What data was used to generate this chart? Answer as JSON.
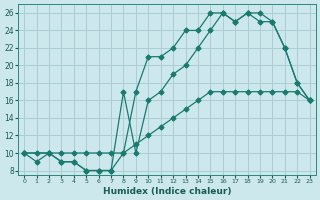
{
  "xlabel": "Humidex (Indice chaleur)",
  "bg_color": "#cce8ed",
  "grid_color": "#aacdd4",
  "line_color": "#1a7a6e",
  "xlim": [
    -0.5,
    23.5
  ],
  "ylim": [
    7.5,
    27
  ],
  "xticks": [
    0,
    1,
    2,
    3,
    4,
    5,
    6,
    7,
    8,
    9,
    10,
    11,
    12,
    13,
    14,
    15,
    16,
    17,
    18,
    19,
    20,
    21,
    22,
    23
  ],
  "yticks": [
    8,
    10,
    12,
    14,
    16,
    18,
    20,
    22,
    24,
    26
  ],
  "line1_x": [
    0,
    1,
    2,
    3,
    4,
    5,
    6,
    7,
    8,
    9,
    10,
    11,
    12,
    13,
    14,
    15,
    16,
    17,
    18,
    19,
    20,
    21,
    22,
    23
  ],
  "line1_y": [
    10,
    10,
    10,
    10,
    10,
    10,
    10,
    10,
    10,
    11,
    12,
    13,
    14,
    15,
    16,
    17,
    17,
    17,
    17,
    17,
    17,
    17,
    17,
    16
  ],
  "line2_x": [
    0,
    1,
    2,
    3,
    4,
    5,
    6,
    7,
    8,
    9,
    10,
    11,
    12,
    13,
    14,
    15,
    16,
    17,
    18,
    19,
    20,
    21,
    22,
    23
  ],
  "line2_y": [
    10,
    9,
    10,
    9,
    9,
    8,
    8,
    8,
    10,
    17,
    21,
    21,
    22,
    24,
    24,
    26,
    26,
    25,
    26,
    25,
    25,
    22,
    18,
    16
  ],
  "line3_x": [
    0,
    2,
    3,
    4,
    5,
    6,
    7,
    8,
    9,
    10,
    11,
    12,
    13,
    14,
    15,
    16,
    17,
    18,
    19,
    20,
    21,
    22,
    23
  ],
  "line3_y": [
    10,
    10,
    9,
    9,
    8,
    8,
    8,
    17,
    10,
    16,
    17,
    19,
    20,
    22,
    24,
    26,
    25,
    26,
    26,
    25,
    22,
    18,
    16
  ]
}
